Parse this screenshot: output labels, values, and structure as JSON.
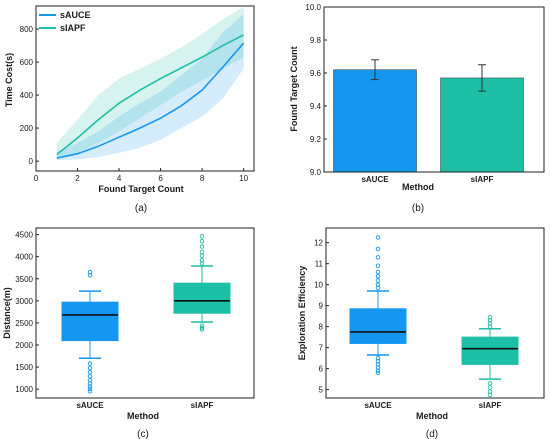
{
  "colors": {
    "sAUCE": "#1597f0",
    "sIAPF": "#1dbfa6",
    "frame": "#222222"
  },
  "chart_data": [
    {
      "id": "a",
      "type": "line",
      "caption": "(a)",
      "xlabel": "Found Target Count",
      "ylabel": "Time Cost(s)",
      "xlim": [
        0,
        10.5
      ],
      "ylim": [
        -60,
        940
      ],
      "xticks": [
        0,
        2,
        4,
        6,
        8,
        10
      ],
      "yticks": [
        0,
        200,
        400,
        600,
        800
      ],
      "legend_position": "top-left",
      "x": [
        1,
        2,
        3,
        4,
        5,
        6,
        7,
        8,
        9,
        10
      ],
      "series": [
        {
          "name": "sAUCE",
          "values": [
            18,
            45,
            90,
            145,
            200,
            260,
            335,
            430,
            570,
            715
          ],
          "upper": [
            55,
            110,
            180,
            270,
            350,
            420,
            520,
            620,
            780,
            890
          ],
          "lower": [
            5,
            10,
            25,
            50,
            80,
            130,
            200,
            270,
            380,
            560
          ]
        },
        {
          "name": "sIAPF",
          "values": [
            40,
            140,
            250,
            350,
            430,
            500,
            565,
            630,
            700,
            765
          ],
          "upper": [
            110,
            250,
            400,
            500,
            560,
            620,
            690,
            770,
            860,
            935
          ],
          "lower": [
            10,
            50,
            110,
            180,
            260,
            340,
            420,
            490,
            560,
            630
          ]
        }
      ]
    },
    {
      "id": "b",
      "type": "bar",
      "caption": "(b)",
      "xlabel": "Method",
      "ylabel": "Found Target Count",
      "ylim": [
        9.0,
        10.0
      ],
      "yticks": [
        "9.0",
        "9.2",
        "9.4",
        "9.6",
        "9.8",
        "10.0"
      ],
      "categories": [
        "sAUCE",
        "sIAPF"
      ],
      "values": [
        9.62,
        9.57
      ],
      "errors": [
        0.06,
        0.08
      ]
    },
    {
      "id": "c",
      "type": "box",
      "caption": "(c)",
      "xlabel": "Method",
      "ylabel": "Distance(m)",
      "ylim": [
        800,
        4650
      ],
      "yticks": [
        1000,
        1500,
        2000,
        2500,
        3000,
        3500,
        4000,
        4500
      ],
      "categories": [
        "sAUCE",
        "sIAPF"
      ],
      "boxes": [
        {
          "q1": 2100,
          "median": 2680,
          "q3": 2970,
          "whisker_low": 1700,
          "whisker_high": 3220,
          "outliers": [
            3580,
            3650,
            1580,
            1480,
            1380,
            1290,
            1200,
            1130,
            1060,
            1010,
            950
          ]
        },
        {
          "q1": 2720,
          "median": 3000,
          "q3": 3400,
          "whisker_low": 2520,
          "whisker_high": 3790,
          "outliers": [
            3850,
            3920,
            4020,
            4110,
            4230,
            4350,
            4460,
            2440,
            2390,
            2350
          ]
        }
      ]
    },
    {
      "id": "d",
      "type": "box",
      "caption": "(d)",
      "xlabel": "Method",
      "ylabel": "Exploration Efficiency",
      "ylim": [
        4.6,
        12.7
      ],
      "yticks": [
        5,
        6,
        7,
        8,
        9,
        10,
        11,
        12
      ],
      "categories": [
        "sAUCE",
        "sIAPF"
      ],
      "boxes": [
        {
          "q1": 7.2,
          "median": 7.75,
          "q3": 8.85,
          "whisker_low": 6.65,
          "whisker_high": 9.7,
          "outliers": [
            9.85,
            10.0,
            10.2,
            10.4,
            10.6,
            10.9,
            11.3,
            11.7,
            12.25,
            6.5,
            6.35,
            6.2,
            6.05,
            5.9,
            5.8
          ]
        },
        {
          "q1": 6.2,
          "median": 6.95,
          "q3": 7.5,
          "whisker_low": 5.5,
          "whisker_high": 7.9,
          "outliers": [
            8.0,
            8.15,
            8.3,
            8.45,
            5.3,
            5.1,
            4.9,
            4.75
          ]
        }
      ]
    }
  ]
}
